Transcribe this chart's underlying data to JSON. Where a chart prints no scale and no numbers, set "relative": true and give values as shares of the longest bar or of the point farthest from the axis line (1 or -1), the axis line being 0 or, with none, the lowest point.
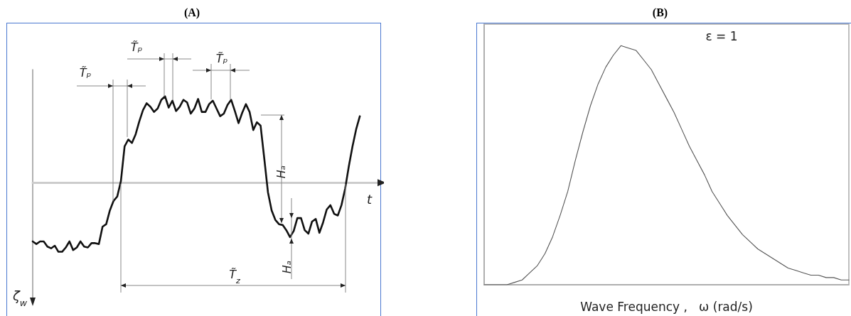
{
  "chart_data": [
    {
      "type": "line",
      "title": "(A)",
      "xlabel": "t",
      "ylabel": "ζ$_{w}$",
      "relative": true,
      "color": "#111111",
      "categories": [
        null,
        null,
        null,
        null,
        null,
        null,
        null,
        null,
        null,
        null,
        null,
        null,
        null,
        null,
        null,
        null,
        null,
        null,
        null,
        null,
        null,
        null,
        null,
        null,
        null,
        null,
        null,
        null,
        null,
        null,
        null,
        null,
        null,
        null,
        null,
        null,
        null,
        null,
        null,
        null,
        null,
        null,
        null,
        null,
        null,
        null,
        null,
        null,
        null,
        null,
        null,
        null,
        null,
        null,
        null,
        null,
        null,
        null,
        null,
        null,
        null,
        null,
        null,
        null,
        null,
        null,
        null,
        null,
        null,
        null,
        null,
        null,
        null,
        null,
        null,
        null,
        null,
        null,
        null,
        null,
        null,
        null,
        null,
        null,
        null,
        null,
        null,
        null,
        null,
        null
      ],
      "values": [
        -0.68,
        -0.71,
        -0.68,
        -0.68,
        -0.74,
        -0.76,
        -0.73,
        -0.8,
        -0.8,
        -0.75,
        -0.68,
        -0.78,
        -0.75,
        -0.68,
        -0.74,
        -0.75,
        -0.7,
        -0.7,
        -0.71,
        -0.51,
        -0.48,
        -0.32,
        -0.21,
        -0.16,
        0.02,
        0.42,
        0.5,
        0.46,
        0.56,
        0.71,
        0.84,
        0.92,
        0.88,
        0.82,
        0.86,
        0.96,
        1.0,
        0.87,
        0.95,
        0.83,
        0.88,
        0.96,
        0.93,
        0.8,
        0.86,
        0.97,
        0.82,
        0.82,
        0.91,
        0.95,
        0.86,
        0.77,
        0.8,
        0.9,
        0.96,
        0.83,
        0.69,
        0.81,
        0.91,
        0.82,
        0.61,
        0.7,
        0.66,
        0.28,
        -0.11,
        -0.32,
        -0.43,
        -0.48,
        -0.49,
        -0.55,
        -0.63,
        -0.56,
        -0.41,
        -0.41,
        -0.55,
        -0.59,
        -0.45,
        -0.42,
        -0.58,
        -0.46,
        -0.31,
        -0.26,
        -0.36,
        -0.38,
        -0.26,
        -0.07,
        0.19,
        0.42,
        0.62,
        0.77
      ],
      "annotations": [
        "T̃ₚ",
        "T̃ₚ",
        "T̃ₚ",
        "Hₐ",
        "Hₐ",
        "T̃$_{z}$"
      ]
    },
    {
      "type": "line",
      "title": "(B)",
      "xlabel": "Wave Frequency ,   ω (rad/s)",
      "relative": true,
      "color": "#555555",
      "categories": [
        null,
        null,
        null,
        null,
        null,
        null,
        null,
        null,
        null,
        null,
        null,
        null,
        null,
        null,
        null,
        null,
        null,
        null,
        null,
        null,
        null,
        null,
        null,
        null,
        null,
        null,
        null,
        null,
        null,
        null,
        null,
        null,
        null,
        null,
        null,
        null,
        null,
        null,
        null,
        null,
        null,
        null,
        null,
        null,
        null,
        null,
        null,
        null,
        null
      ],
      "values": [
        0,
        0,
        0,
        0,
        0.01,
        0.02,
        0.05,
        0.08,
        0.13,
        0.2,
        0.29,
        0.39,
        0.52,
        0.64,
        0.75,
        0.84,
        0.91,
        0.96,
        1.0,
        0.99,
        0.98,
        0.94,
        0.9,
        0.84,
        0.78,
        0.72,
        0.65,
        0.58,
        0.52,
        0.46,
        0.39,
        0.34,
        0.29,
        0.25,
        0.21,
        0.18,
        0.15,
        0.13,
        0.11,
        0.09,
        0.07,
        0.06,
        0.05,
        0.04,
        0.04,
        0.03,
        0.03,
        0.02,
        0.02
      ],
      "annotations": [
        "ε = 1"
      ]
    }
  ]
}
